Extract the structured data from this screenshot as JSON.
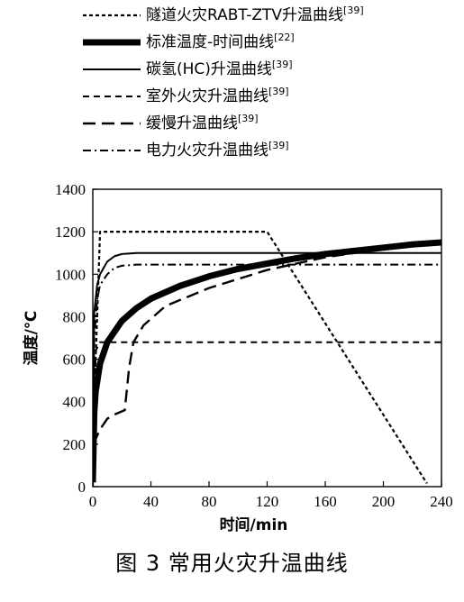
{
  "chart_data": {
    "type": "line",
    "xlabel": "时间/min",
    "ylabel": "温度/℃",
    "xlim": [
      0,
      240
    ],
    "ylim": [
      0,
      1400
    ],
    "x_ticks": [
      0,
      40,
      80,
      120,
      160,
      200,
      240
    ],
    "y_ticks": [
      0,
      200,
      400,
      600,
      800,
      1000,
      1200,
      1400
    ],
    "grid": false,
    "legend_position": "top",
    "series": [
      {
        "name": "隧道火灾RABT-ZTV升温曲线",
        "ref": "[39]",
        "style": "dotted",
        "color": "#000000",
        "x": [
          0,
          2,
          5,
          120,
          230
        ],
        "y": [
          0,
          600,
          1200,
          1200,
          15
        ]
      },
      {
        "name": "标准温度-时间曲线",
        "ref": "[22]",
        "style": "thick-solid",
        "color": "#000000",
        "x": [
          0,
          1,
          2,
          5,
          10,
          20,
          30,
          40,
          60,
          80,
          100,
          120,
          140,
          160,
          180,
          200,
          220,
          240
        ],
        "y": [
          20,
          350,
          450,
          580,
          680,
          780,
          840,
          885,
          945,
          990,
          1025,
          1050,
          1075,
          1095,
          1110,
          1125,
          1140,
          1150
        ]
      },
      {
        "name": "碳氢(HC)升温曲线",
        "ref": "[39]",
        "style": "solid",
        "color": "#000000",
        "x": [
          0,
          1,
          3,
          5,
          10,
          15,
          20,
          30,
          60,
          120,
          240
        ],
        "y": [
          20,
          820,
          950,
          1000,
          1060,
          1085,
          1095,
          1100,
          1100,
          1100,
          1100
        ]
      },
      {
        "name": "室外火灾升温曲线",
        "ref": "[39]",
        "style": "dashed",
        "color": "#000000",
        "x": [
          0,
          2,
          5,
          20,
          240
        ],
        "y": [
          20,
          640,
          680,
          680,
          680
        ]
      },
      {
        "name": "缓慢升温曲线",
        "ref": "[39]",
        "style": "long-dashed",
        "color": "#000000",
        "x": [
          0,
          1,
          5,
          10,
          15,
          22,
          25,
          28,
          35,
          50,
          80,
          120,
          160,
          200,
          240
        ],
        "y": [
          20,
          210,
          270,
          320,
          340,
          360,
          560,
          680,
          760,
          850,
          935,
          1020,
          1080,
          1120,
          1150
        ]
      },
      {
        "name": "电力火灾升温曲线",
        "ref": "[39]",
        "style": "dash-dot",
        "color": "#000000",
        "x": [
          0,
          1,
          3,
          5,
          10,
          15,
          20,
          30,
          240
        ],
        "y": [
          20,
          700,
          880,
          950,
          1000,
          1030,
          1040,
          1045,
          1045
        ]
      }
    ]
  },
  "caption": "图 3   常用火灾升温曲线"
}
